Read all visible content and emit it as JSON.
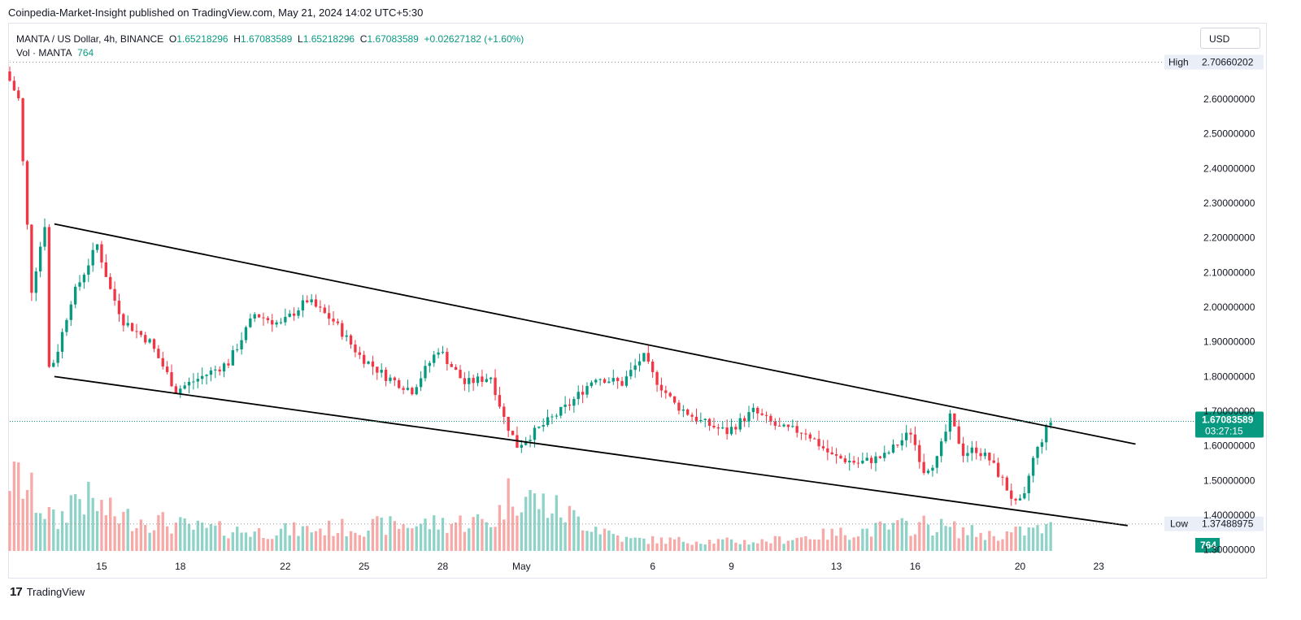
{
  "header": {
    "publisher_line": "Coinpedia-Market-Insight published on TradingView.com, May 21, 2024 14:02 UTC+5:30"
  },
  "legend": {
    "symbol": "MANTA / US Dollar, 4h, BINANCE",
    "open_label": "O",
    "open": "1.65218296",
    "high_label": "H",
    "high": "1.67083589",
    "low_label": "L",
    "low": "1.65218296",
    "close_label": "C",
    "close": "1.67083589",
    "change": "+0.02627182 (+1.60%)",
    "vol_label": "Vol · MANTA",
    "vol": "764"
  },
  "toolbar": {
    "currency": "USD"
  },
  "footer": {
    "brand": "TradingView",
    "logo_glyph": "17"
  },
  "colors": {
    "up": "#089981",
    "down": "#f23645",
    "up_vol": "#8fd3c8",
    "down_vol": "#f7a9a7",
    "trendline": "#000000"
  },
  "chart_data": {
    "type": "candlestick",
    "symbol": "MANTA / US Dollar",
    "interval": "4h",
    "exchange": "BINANCE",
    "ylim": [
      1.25,
      2.75
    ],
    "y_ticks": [
      "2.60000000",
      "2.50000000",
      "2.40000000",
      "2.30000000",
      "2.20000000",
      "2.10000000",
      "2.00000000",
      "1.90000000",
      "1.80000000",
      "1.70000000",
      "1.60000000",
      "1.50000000",
      "1.40000000",
      "1.30000000"
    ],
    "x_ticks": [
      {
        "label": "15",
        "day": 15
      },
      {
        "label": "18",
        "day": 18
      },
      {
        "label": "22",
        "day": 22
      },
      {
        "label": "25",
        "day": 25
      },
      {
        "label": "28",
        "day": 28
      },
      {
        "label": "May",
        "day": 31
      },
      {
        "label": "6",
        "day": 36
      },
      {
        "label": "9",
        "day": 39
      },
      {
        "label": "13",
        "day": 43
      },
      {
        "label": "16",
        "day": 46
      },
      {
        "label": "20",
        "day": 50
      },
      {
        "label": "23",
        "day": 53
      }
    ],
    "high_marker": {
      "label": "High",
      "value": "2.70660202",
      "y": 2.7066
    },
    "low_marker": {
      "label": "Low",
      "value": "1.37488975",
      "y": 1.3749
    },
    "last_price": {
      "value": "1.67083589",
      "countdown": "03:27:15",
      "y": 1.6708
    },
    "volume_last": "764",
    "trendlines": [
      {
        "name": "upper",
        "x": [
          13.2,
          54.4
        ],
        "y": [
          2.24,
          1.605
        ]
      },
      {
        "name": "lower",
        "x": [
          13.2,
          54.1
        ],
        "y": [
          1.8,
          1.37
        ]
      }
    ],
    "price_path": {
      "x": [
        11.5,
        12.0,
        12.5,
        13.0,
        13.1,
        13.4,
        14.0,
        15.0,
        15.5,
        16.0,
        17.0,
        18.0,
        19.0,
        20.0,
        21.0,
        22.0,
        23.0,
        24.0,
        25.0,
        26.0,
        27.0,
        28.0,
        29.0,
        30.0,
        30.5,
        31.0,
        32.0,
        33.0,
        34.0,
        35.0,
        35.8,
        36.2,
        37.0,
        38.0,
        39.0,
        40.0,
        41.0,
        42.0,
        43.0,
        44.0,
        45.0,
        46.0,
        46.5,
        47.0,
        47.5,
        48.0,
        48.5,
        49.0,
        49.5,
        50.0,
        50.3,
        50.6,
        51.0,
        51.3
      ],
      "y": [
        2.68,
        2.6,
        2.05,
        2.24,
        1.82,
        1.85,
        2.02,
        2.18,
        2.05,
        1.96,
        1.9,
        1.76,
        1.8,
        1.84,
        1.98,
        1.95,
        2.02,
        1.96,
        1.86,
        1.8,
        1.76,
        1.88,
        1.78,
        1.8,
        1.68,
        1.6,
        1.66,
        1.72,
        1.8,
        1.78,
        1.86,
        1.8,
        1.72,
        1.67,
        1.64,
        1.7,
        1.65,
        1.64,
        1.57,
        1.55,
        1.57,
        1.64,
        1.53,
        1.56,
        1.68,
        1.58,
        1.59,
        1.56,
        1.5,
        1.43,
        1.44,
        1.55,
        1.62,
        1.67
      ]
    },
    "volume_path": {
      "x": [
        11.7,
        13.3,
        14.0,
        15.6,
        17.0,
        18.5,
        21.0,
        24.0,
        30.0,
        30.6,
        35.0,
        40.0,
        46.4,
        49.0,
        50.0,
        51.2
      ],
      "y": [
        1.0,
        0.35,
        0.75,
        0.45,
        0.4,
        0.3,
        0.25,
        0.3,
        0.4,
        0.8,
        0.15,
        0.12,
        0.35,
        0.2,
        0.25,
        0.3
      ]
    }
  }
}
